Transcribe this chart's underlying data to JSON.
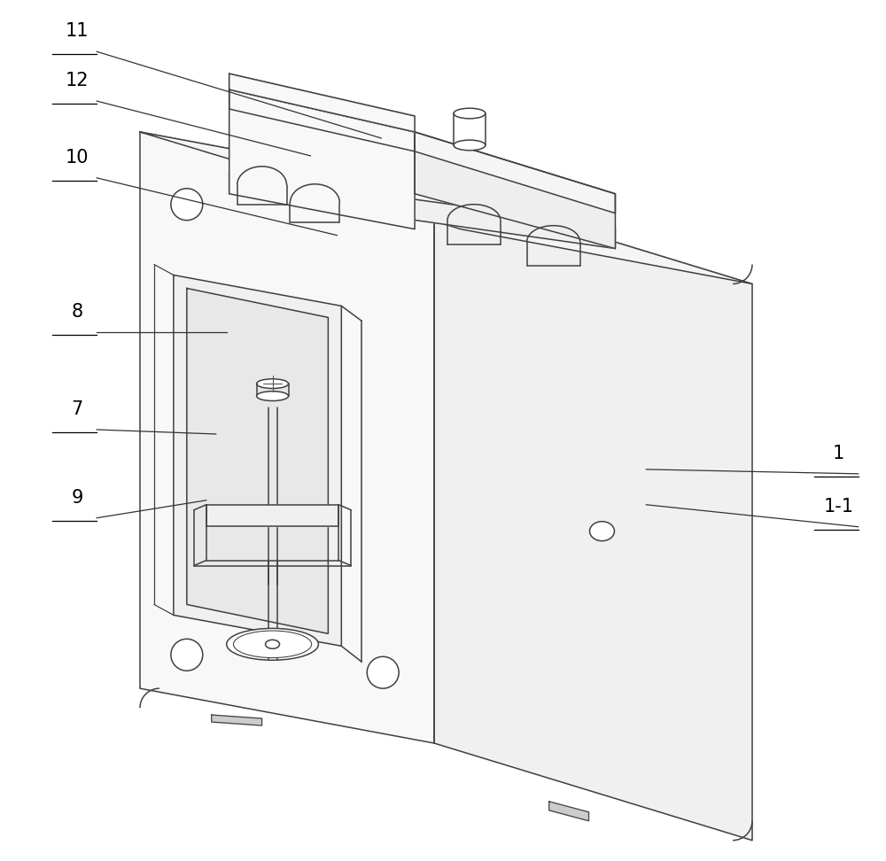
{
  "background_color": "#ffffff",
  "line_color": "#404040",
  "line_width": 1.1,
  "annotation_line_color": "#333333",
  "annotation_font_size": 15,
  "fig_width": 10.0,
  "fig_height": 9.72
}
